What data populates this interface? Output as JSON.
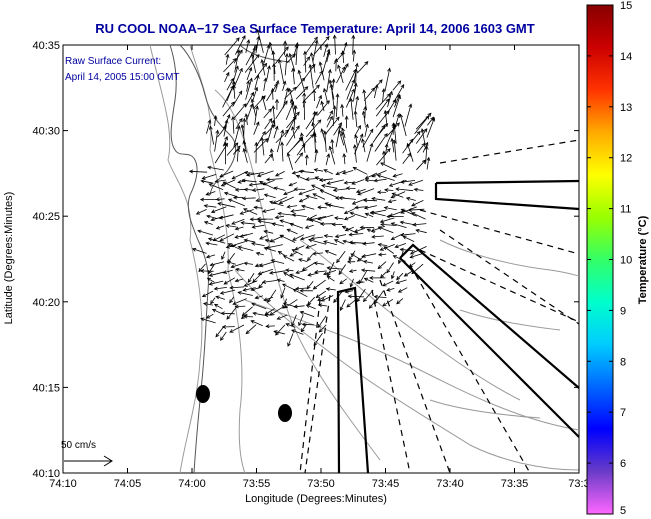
{
  "title": "RU COOL  NOAA−17  Sea Surface Temperature:  April 14, 2006 1603 GMT",
  "legend_line1": "Raw Surface Current:",
  "legend_line2": "April 14, 2005 15:00 GMT",
  "scale_label": "50 cm/s",
  "x_axis_label": "Longitude (Degrees:Minutes)",
  "y_axis_label": "Latitude (Degrees:Minutes)",
  "x_ticks": [
    "74:10",
    "74:05",
    "74:00",
    "73:55",
    "73:50",
    "73:45",
    "73:40",
    "73:35",
    "73:3"
  ],
  "y_ticks": [
    "40:35",
    "40:30",
    "40:25",
    "40:20",
    "40:15",
    "40:10"
  ],
  "colorbar": {
    "label": "Temperature (°C)",
    "ticks": [
      "15",
      "14",
      "13",
      "12",
      "11",
      "10",
      "9",
      "8",
      "7",
      "6",
      "5"
    ],
    "range": [
      5,
      15
    ],
    "colors": [
      "#ff66ff",
      "#6a3cc8",
      "#0000ff",
      "#0066ff",
      "#00ccff",
      "#00ffcc",
      "#33ff66",
      "#99ff00",
      "#ffff00",
      "#ffaa00",
      "#ff3300",
      "#cc0000",
      "#880000"
    ]
  },
  "colors": {
    "title": "#0000a0",
    "contour": "#999999",
    "arrow": "#000000"
  }
}
